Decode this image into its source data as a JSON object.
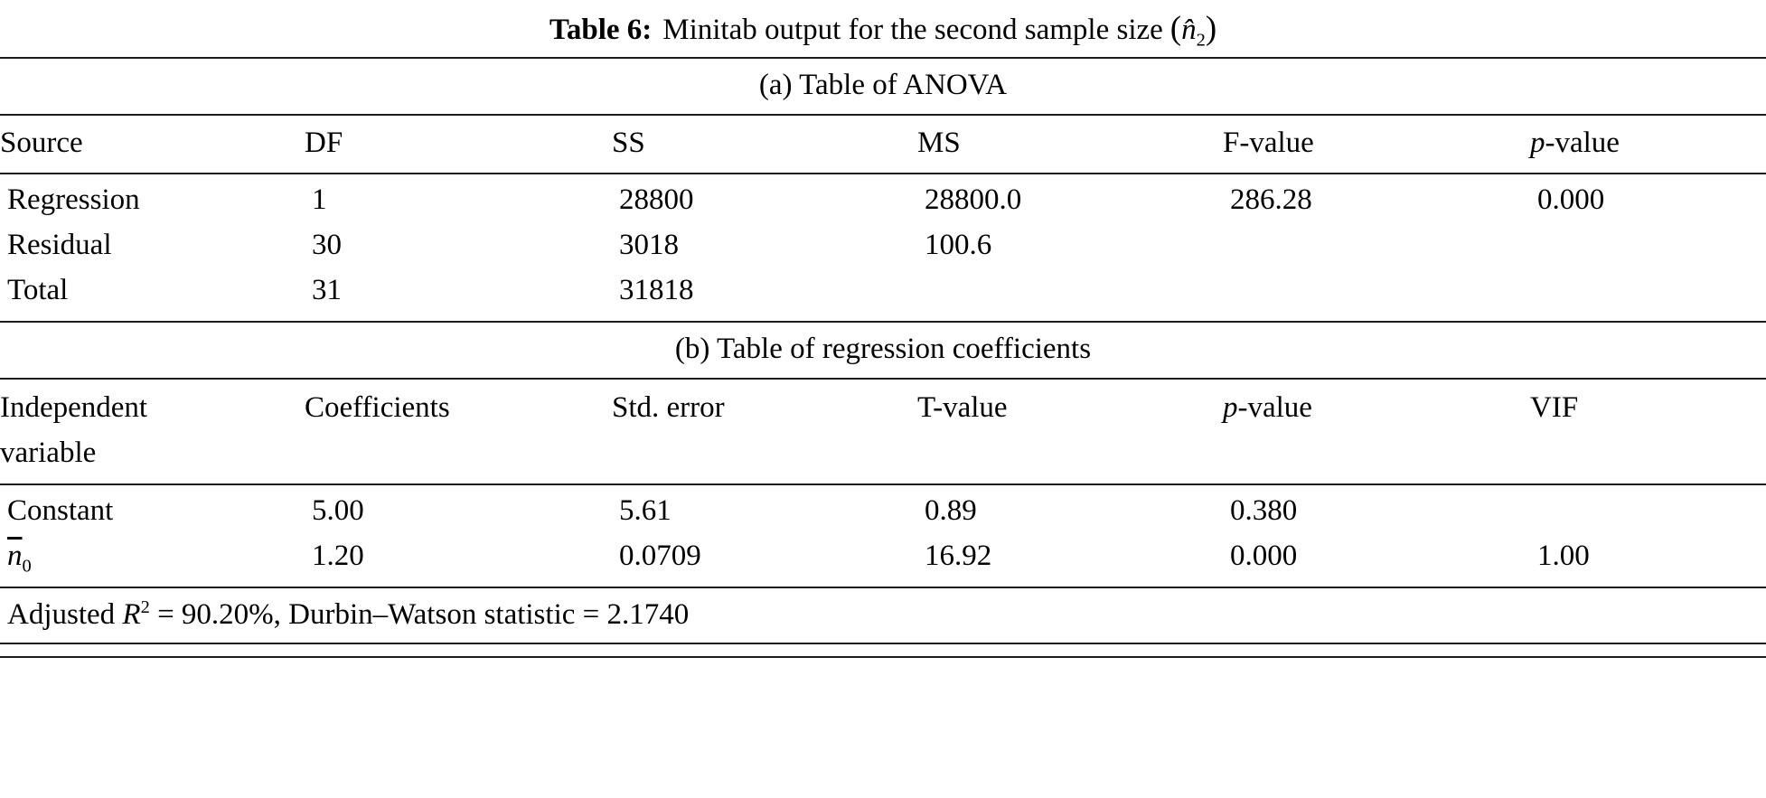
{
  "title": {
    "label": "Table 6:",
    "text": "Minitab output for the second sample size",
    "open_paren": "(",
    "math_base": "n̂",
    "math_sub": "2",
    "close_paren": ")"
  },
  "anova": {
    "caption": "(a) Table of ANOVA",
    "headers": [
      {
        "text": "Source"
      },
      {
        "text": "DF"
      },
      {
        "text": "SS"
      },
      {
        "text": "MS"
      },
      {
        "text": "F-value"
      },
      {
        "italic": "p",
        "text": "-value"
      }
    ],
    "rows": [
      {
        "source": "Regression",
        "df": "1",
        "ss": "28800",
        "ms": "28800.0",
        "f": "286.28",
        "p": "0.000"
      },
      {
        "source": "Residual",
        "df": "30",
        "ss": "3018",
        "ms": "100.6",
        "f": "",
        "p": ""
      },
      {
        "source": "Total",
        "df": "31",
        "ss": "31818",
        "ms": "",
        "f": "",
        "p": ""
      }
    ]
  },
  "coefficients": {
    "caption": "(b) Table of regression coefficients",
    "headers": [
      {
        "text": "Independent variable"
      },
      {
        "text": "Coefficients"
      },
      {
        "text": "Std. error"
      },
      {
        "text": "T-value"
      },
      {
        "italic": "p",
        "text": "-value"
      },
      {
        "text": "VIF"
      }
    ],
    "rows": [
      {
        "variable": "Constant",
        "coefficient": "5.00",
        "std_error": "5.61",
        "t_value": "0.89",
        "p_value": "0.380",
        "vif": ""
      },
      {
        "variable_base": "n",
        "variable_sub": "0",
        "coefficient": "1.20",
        "std_error": "0.0709",
        "t_value": "16.92",
        "p_value": "0.000",
        "vif": "1.00"
      }
    ]
  },
  "footnote": {
    "prefix": "Adjusted ",
    "r_symbol": "R",
    "r_sup": "2",
    "rest": " = 90.20%, Durbin–Watson statistic = 2.1740"
  }
}
